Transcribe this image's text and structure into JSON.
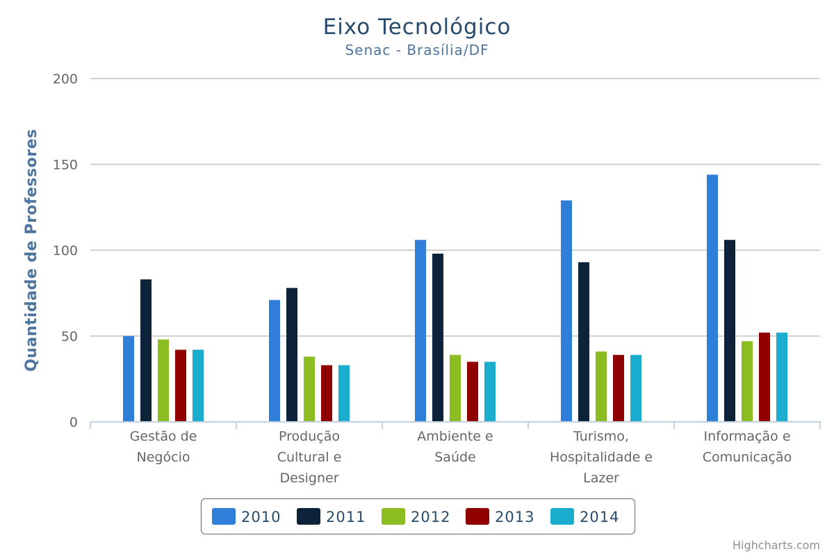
{
  "chart_data": {
    "type": "bar",
    "title": "Eixo Tecnológico",
    "subtitle": "Senac - Brasília/DF",
    "ylabel": "Quantidade de Professores",
    "xlabel": "",
    "ylim": [
      0,
      200
    ],
    "yticks": [
      0,
      50,
      100,
      150,
      200
    ],
    "grid": true,
    "legend_position": "bottom-center",
    "categories": [
      [
        "Gestão de",
        "Negócio"
      ],
      [
        "Produção",
        "Cultural e",
        "Designer"
      ],
      [
        "Ambiente e",
        "Saúde"
      ],
      [
        "Turismo,",
        "Hospitalidade e",
        "Lazer"
      ],
      [
        "Informação e",
        "Comunicação"
      ]
    ],
    "series": [
      {
        "name": "2010",
        "color": "#2f7ed8",
        "values": [
          50,
          71,
          106,
          129,
          144
        ]
      },
      {
        "name": "2011",
        "color": "#0d233a",
        "values": [
          83,
          78,
          98,
          93,
          106
        ]
      },
      {
        "name": "2012",
        "color": "#8bbc21",
        "values": [
          48,
          38,
          39,
          41,
          47
        ]
      },
      {
        "name": "2013",
        "color": "#910000",
        "values": [
          42,
          33,
          35,
          39,
          52
        ]
      },
      {
        "name": "2014",
        "color": "#1aadce",
        "values": [
          42,
          33,
          35,
          39,
          52
        ]
      }
    ]
  },
  "credits": "Highcharts.com"
}
